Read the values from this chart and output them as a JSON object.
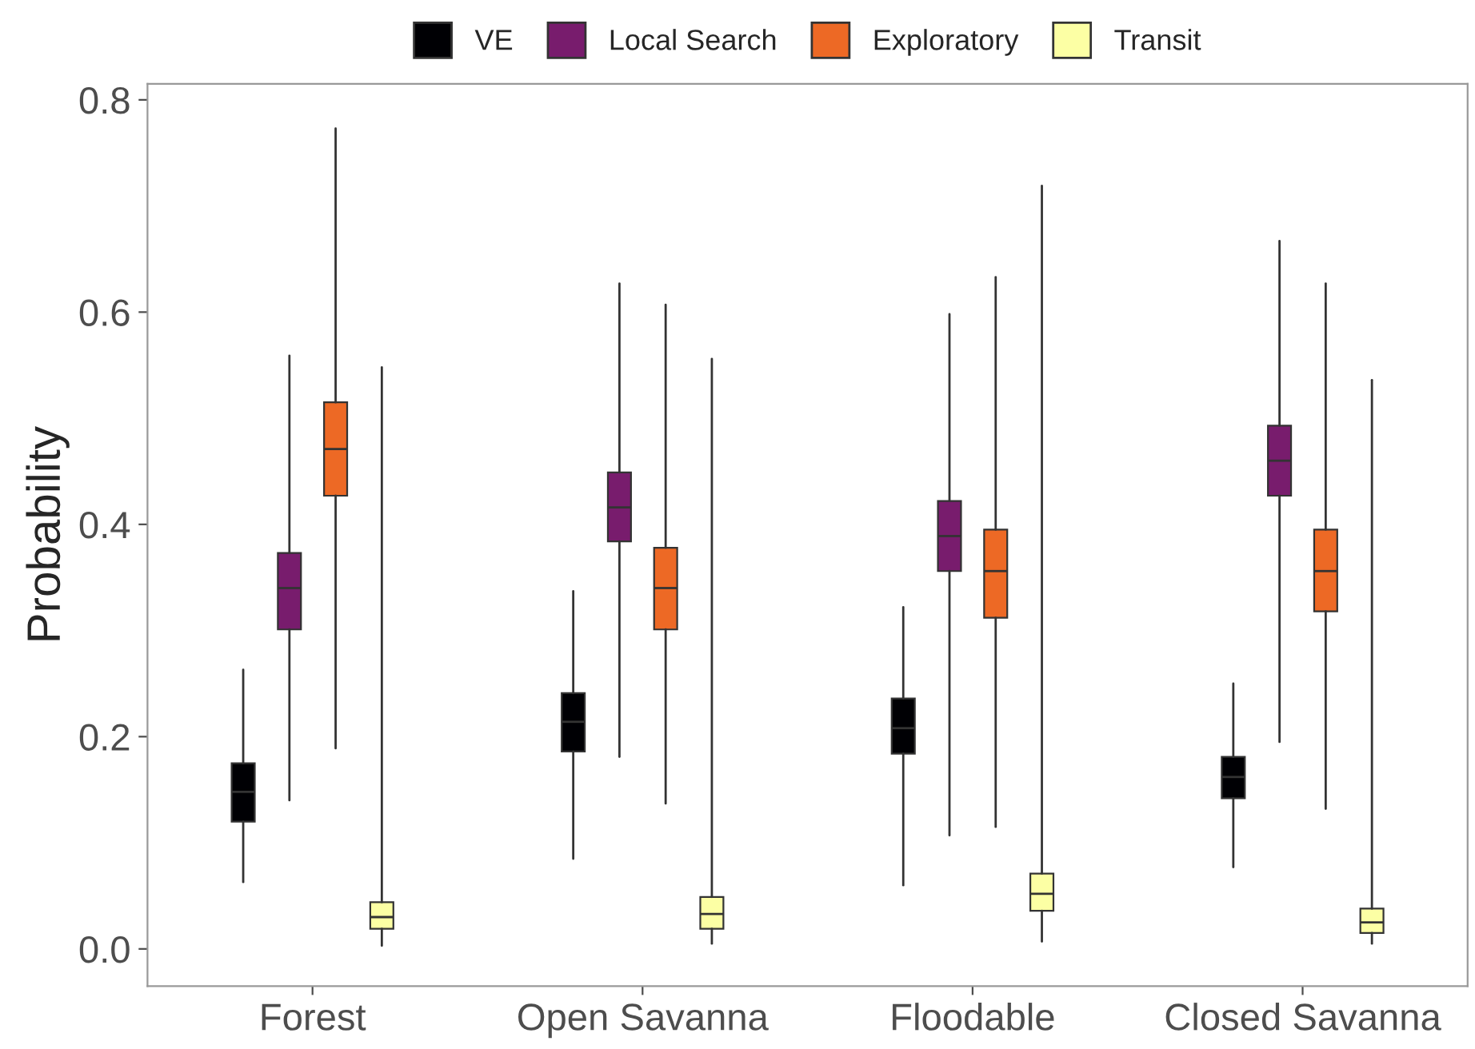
{
  "chart_data": {
    "type": "box",
    "ylabel": "Probability",
    "categories": [
      "Forest",
      "Open Savanna",
      "Floodable",
      "Closed Savanna"
    ],
    "ylim": [
      -0.035,
      0.815
    ],
    "yticks": [
      {
        "value": 0,
        "label": "0.0"
      },
      {
        "value": 0.2,
        "label": "0.2"
      },
      {
        "value": 0.4,
        "label": "0.4"
      },
      {
        "value": 0.6,
        "label": "0.6"
      },
      {
        "value": 0.8,
        "label": "0.8"
      }
    ],
    "grid": false,
    "legend": "top",
    "series": [
      {
        "name": "VE",
        "color": "#000004",
        "boxes": [
          {
            "low": 0.063,
            "q1": 0.12,
            "median": 0.148,
            "q3": 0.175,
            "high": 0.263
          },
          {
            "low": 0.085,
            "q1": 0.186,
            "median": 0.214,
            "q3": 0.241,
            "high": 0.337
          },
          {
            "low": 0.06,
            "q1": 0.184,
            "median": 0.208,
            "q3": 0.236,
            "high": 0.322
          },
          {
            "low": 0.077,
            "q1": 0.142,
            "median": 0.162,
            "q3": 0.181,
            "high": 0.25
          }
        ]
      },
      {
        "name": "Local Search",
        "color": "#781c6d",
        "boxes": [
          {
            "low": 0.14,
            "q1": 0.301,
            "median": 0.34,
            "q3": 0.373,
            "high": 0.559
          },
          {
            "low": 0.181,
            "q1": 0.384,
            "median": 0.416,
            "q3": 0.449,
            "high": 0.627
          },
          {
            "low": 0.107,
            "q1": 0.356,
            "median": 0.389,
            "q3": 0.422,
            "high": 0.598
          },
          {
            "low": 0.195,
            "q1": 0.427,
            "median": 0.46,
            "q3": 0.493,
            "high": 0.667
          }
        ]
      },
      {
        "name": "Exploratory",
        "color": "#ed6925",
        "boxes": [
          {
            "low": 0.189,
            "q1": 0.427,
            "median": 0.471,
            "q3": 0.515,
            "high": 0.773
          },
          {
            "low": 0.137,
            "q1": 0.301,
            "median": 0.34,
            "q3": 0.378,
            "high": 0.607
          },
          {
            "low": 0.115,
            "q1": 0.312,
            "median": 0.356,
            "q3": 0.395,
            "high": 0.633
          },
          {
            "low": 0.132,
            "q1": 0.318,
            "median": 0.356,
            "q3": 0.395,
            "high": 0.627
          }
        ]
      },
      {
        "name": "Transit",
        "color": "#fcffa4",
        "boxes": [
          {
            "low": 0.003,
            "q1": 0.019,
            "median": 0.03,
            "q3": 0.044,
            "high": 0.548
          },
          {
            "low": 0.005,
            "q1": 0.019,
            "median": 0.033,
            "q3": 0.049,
            "high": 0.556
          },
          {
            "low": 0.007,
            "q1": 0.036,
            "median": 0.052,
            "q3": 0.071,
            "high": 0.719
          },
          {
            "low": 0.005,
            "q1": 0.015,
            "median": 0.025,
            "q3": 0.038,
            "high": 0.536
          }
        ]
      }
    ]
  }
}
